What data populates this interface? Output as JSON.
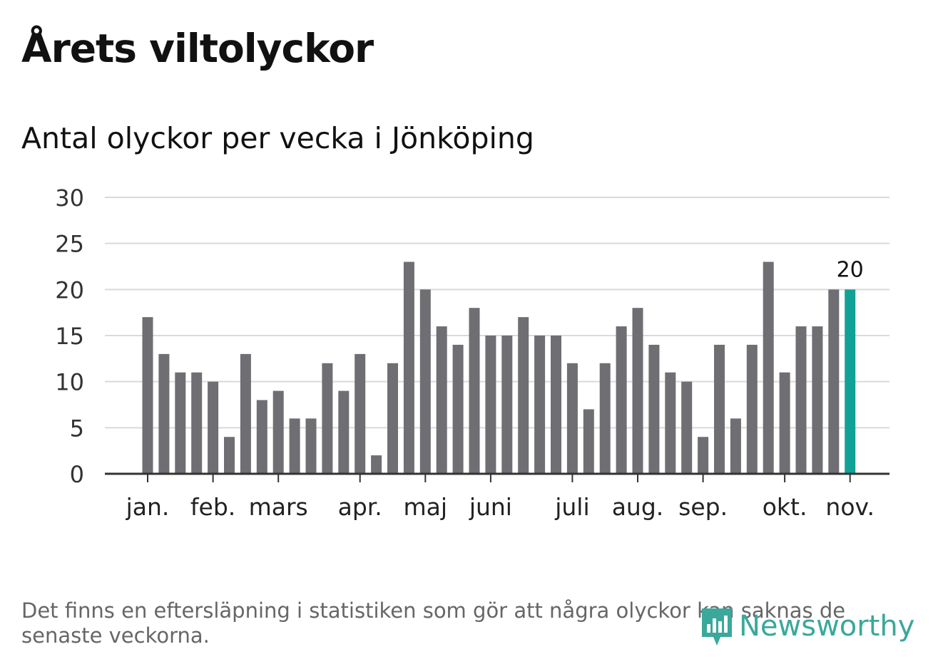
{
  "title": "Årets viltolyckor",
  "subtitle": "Antal olyckor per vecka i Jönköping",
  "footnote": "Det finns en eftersläpning i statistiken som gör att några olyckor kan saknas de senaste veckorna.",
  "logo_text": "Newsworthy",
  "logo_icon": "bar-chart-speech-bubble-icon",
  "colors": {
    "bar": "#6e6e73",
    "highlight": "#12a196",
    "grid": "#d9d9d9",
    "axis": "#333333",
    "logo": "#3aa89a"
  },
  "chart_data": {
    "type": "bar",
    "title": "Antal olyckor per vecka i Jönköping",
    "xlabel": "",
    "ylabel": "",
    "ylim": [
      0,
      30
    ],
    "yticks": [
      0,
      5,
      10,
      15,
      20,
      25,
      30
    ],
    "grid": true,
    "values": [
      17,
      13,
      11,
      11,
      10,
      4,
      13,
      8,
      9,
      6,
      6,
      12,
      9,
      13,
      2,
      12,
      23,
      20,
      16,
      14,
      18,
      15,
      15,
      17,
      15,
      15,
      12,
      7,
      12,
      16,
      18,
      14,
      11,
      10,
      4,
      14,
      6,
      14,
      23,
      11,
      16,
      16,
      20,
      20
    ],
    "highlight_index": 43,
    "highlight_label": "20",
    "month_ticks": [
      {
        "label": "jan.",
        "week": 0
      },
      {
        "label": "feb.",
        "week": 4
      },
      {
        "label": "mars",
        "week": 8
      },
      {
        "label": "apr.",
        "week": 13
      },
      {
        "label": "maj",
        "week": 17
      },
      {
        "label": "juni",
        "week": 21
      },
      {
        "label": "juli",
        "week": 26
      },
      {
        "label": "aug.",
        "week": 30
      },
      {
        "label": "sep.",
        "week": 34
      },
      {
        "label": "okt.",
        "week": 39
      },
      {
        "label": "nov.",
        "week": 43
      }
    ]
  }
}
